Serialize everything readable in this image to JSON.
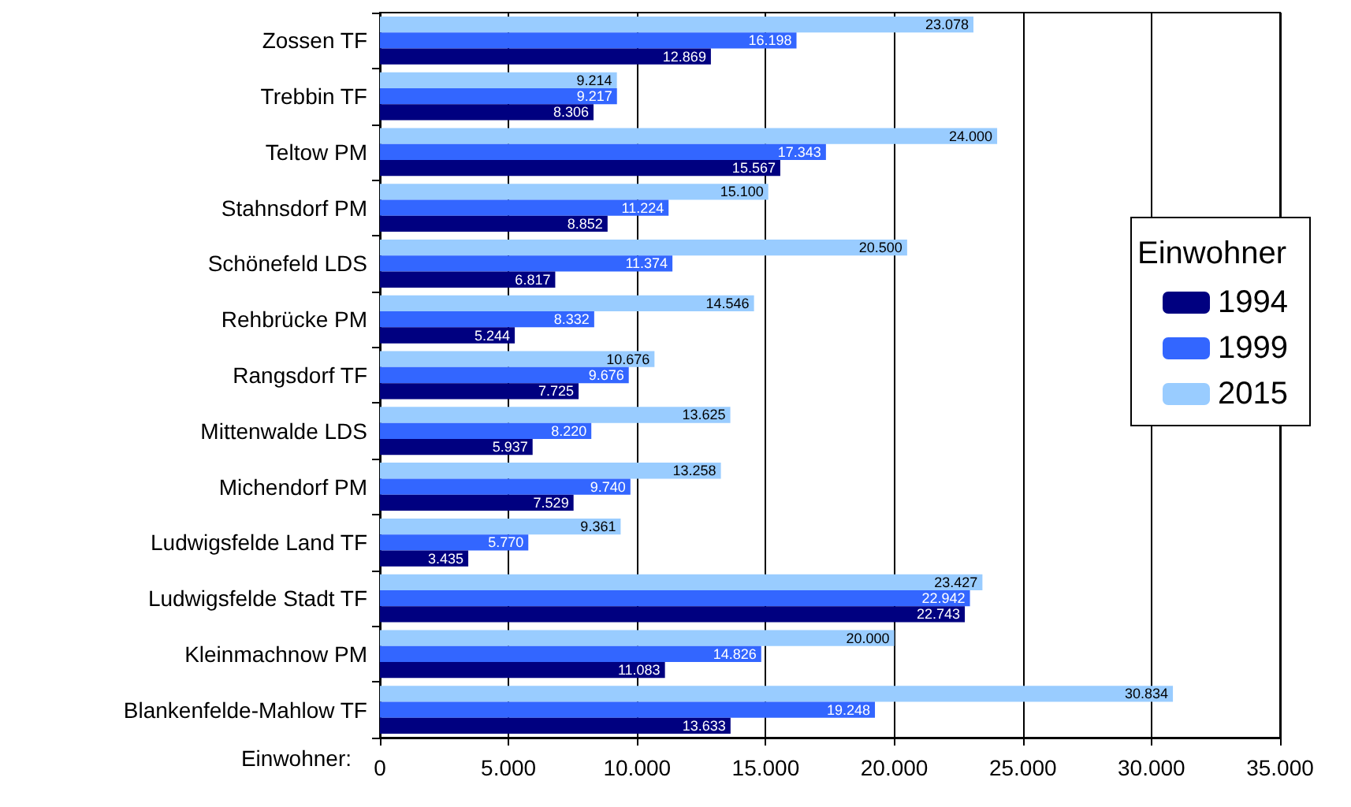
{
  "chart_data": {
    "type": "bar",
    "orientation": "horizontal",
    "xlabel": "Einwohner:",
    "legend_title": "Einwohner",
    "legend": "right",
    "grid": "x",
    "categories": [
      "Zossen TF",
      "Trebbin TF",
      "Teltow PM",
      "Stahnsdorf PM",
      "Schönefeld LDS",
      "Rehbrücke PM",
      "Rangsdorf TF",
      "Mittenwalde LDS",
      "Michendorf PM",
      "Ludwigsfelde Land TF",
      "Ludwigsfelde Stadt TF",
      "Kleinmachnow PM",
      "Blankenfelde-Mahlow TF"
    ],
    "xlim": [
      0,
      35000
    ],
    "xticks": [
      {
        "value": 0,
        "label": "0"
      },
      {
        "value": 5000,
        "label": "5.000"
      },
      {
        "value": 10000,
        "label": "10.000"
      },
      {
        "value": 15000,
        "label": "15.000"
      },
      {
        "value": 20000,
        "label": "20.000"
      },
      {
        "value": 25000,
        "label": "25.000"
      },
      {
        "value": 30000,
        "label": "30.000"
      },
      {
        "value": 35000,
        "label": "35.000"
      }
    ],
    "series": [
      {
        "name": "1994",
        "color": "#000080",
        "values": [
          12869,
          8306,
          15567,
          8852,
          6817,
          5244,
          7725,
          5937,
          7529,
          3435,
          22743,
          11083,
          13633
        ],
        "value_labels": [
          "12.869",
          "8.306",
          "15.567",
          "8.852",
          "6.817",
          "5.244",
          "7.725",
          "5.937",
          "7.529",
          "3.435",
          "22.743",
          "11.083",
          "13.633"
        ]
      },
      {
        "name": "1999",
        "color": "#3366ff",
        "values": [
          16198,
          9217,
          17343,
          11224,
          11374,
          8332,
          9676,
          8220,
          9740,
          5770,
          22942,
          14826,
          19248
        ],
        "value_labels": [
          "16.198",
          "9.217",
          "17.343",
          "11.224",
          "11.374",
          "8.332",
          "9.676",
          "8.220",
          "9.740",
          "5.770",
          "22.942",
          "14.826",
          "19.248"
        ]
      },
      {
        "name": "2015",
        "color": "#99ccff",
        "values": [
          23078,
          9214,
          24000,
          15100,
          20500,
          14546,
          10676,
          13625,
          13258,
          9361,
          23427,
          20000,
          30834
        ],
        "value_labels": [
          "23.078",
          "9.214",
          "24.000",
          "15.100",
          "20.500",
          "14.546",
          "10.676",
          "13.625",
          "13.258",
          "9.361",
          "23.427",
          "20.000",
          "30.834"
        ]
      }
    ]
  }
}
